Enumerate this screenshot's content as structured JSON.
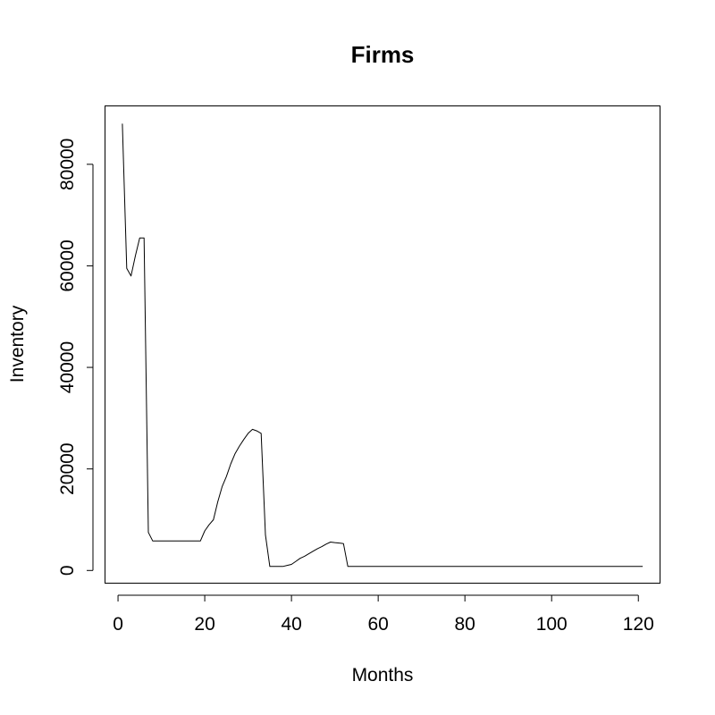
{
  "chart_data": {
    "type": "line",
    "title": "Firms",
    "xlabel": "Months",
    "ylabel": "Inventory",
    "xlim": [
      -3,
      125
    ],
    "ylim": [
      -2500,
      91500
    ],
    "xticks": [
      0,
      20,
      40,
      60,
      80,
      100,
      120
    ],
    "yticks": [
      0,
      20000,
      40000,
      60000,
      80000
    ],
    "xtick_labels": [
      "0",
      "20",
      "40",
      "60",
      "80",
      "100",
      "120"
    ],
    "ytick_labels": [
      "0",
      "20000",
      "40000",
      "60000",
      "80000"
    ],
    "grid": false,
    "series": [
      {
        "color": "#000000",
        "x": [
          1,
          2,
          3,
          4,
          5,
          6,
          7,
          8,
          9,
          10,
          11,
          12,
          13,
          14,
          15,
          16,
          17,
          18,
          19,
          20,
          21,
          22,
          23,
          24,
          25,
          26,
          27,
          28,
          29,
          30,
          31,
          32,
          33,
          34,
          35,
          36,
          37,
          38,
          39,
          40,
          41,
          42,
          43,
          44,
          45,
          46,
          47,
          48,
          49,
          50,
          51,
          52,
          53,
          54,
          55,
          60,
          70,
          80,
          90,
          100,
          110,
          121
        ],
        "y": [
          88000,
          59500,
          58000,
          62000,
          65500,
          65500,
          7500,
          5800,
          5800,
          5800,
          5800,
          5800,
          5800,
          5800,
          5800,
          5800,
          5800,
          5800,
          5800,
          7800,
          9000,
          10000,
          13500,
          16500,
          18500,
          21000,
          23000,
          24500,
          25800,
          27000,
          27800,
          27500,
          27000,
          7000,
          800,
          800,
          800,
          800,
          1000,
          1200,
          1800,
          2400,
          2800,
          3300,
          3800,
          4300,
          4700,
          5200,
          5600,
          5500,
          5400,
          5300,
          800,
          800,
          800,
          800,
          800,
          800,
          800,
          800,
          800,
          800
        ]
      }
    ]
  }
}
